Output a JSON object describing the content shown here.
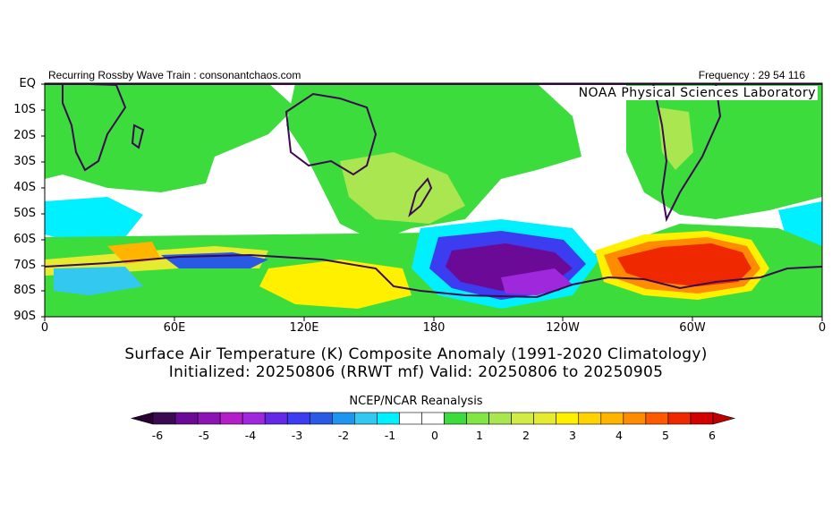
{
  "header": {
    "left": "Recurring Rossby Wave Train : consonantchaos.com",
    "right": "Frequency : 29 54 116",
    "credit": "NOAA Physical Sciences Laboratory"
  },
  "map": {
    "lat_labels": [
      "EQ",
      "10S",
      "20S",
      "30S",
      "40S",
      "50S",
      "60S",
      "70S",
      "80S",
      "90S"
    ],
    "lon_labels": [
      "0",
      "60E",
      "120E",
      "180",
      "120W",
      "60W",
      "0"
    ]
  },
  "caption": {
    "line1": "Surface Air Temperature (K) Composite Anomaly (1991-2020 Climatology)",
    "line2": "Initialized: 20250806 (RRWT mf) Valid: 20250806 to 20250905"
  },
  "colorbar": {
    "title": "NCEP/NCAR Reanalysis",
    "labels": [
      "-6",
      "-5",
      "-4",
      "-3",
      "-2",
      "-1",
      "0",
      "1",
      "2",
      "3",
      "4",
      "5",
      "6"
    ],
    "colors": [
      "#3c0a50",
      "#6a0a96",
      "#8c14b4",
      "#b41ec8",
      "#a028dc",
      "#6428e6",
      "#3c3cf0",
      "#285ae6",
      "#1e96f0",
      "#32c8f0",
      "#00f0ff",
      "#ffffff",
      "#ffffff",
      "#3cdc3c",
      "#82e646",
      "#aae650",
      "#d2eb46",
      "#e6eb32",
      "#fff000",
      "#ffd200",
      "#ffb400",
      "#ff8c00",
      "#ff5a00",
      "#f02800",
      "#d20000"
    ],
    "arrow_left": "#280032",
    "arrow_right": "#be0000"
  }
}
